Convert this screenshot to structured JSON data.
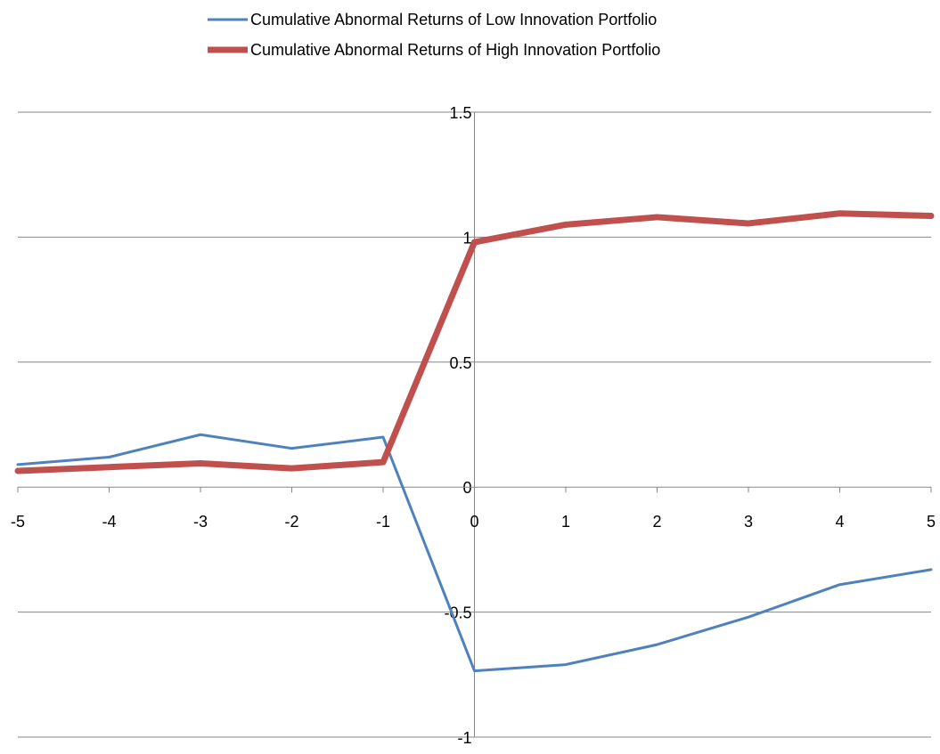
{
  "chart_data": {
    "type": "line",
    "x": [
      -5,
      -4,
      -3,
      -2,
      -1,
      0,
      1,
      2,
      3,
      4,
      5
    ],
    "x_tick_labels": [
      "-5",
      "-4",
      "-3",
      "-2",
      "-1",
      "0",
      "1",
      "2",
      "3",
      "4",
      "5"
    ],
    "y_ticks": [
      1.5,
      1,
      0.5,
      0,
      -0.5,
      -1
    ],
    "y_tick_labels": [
      "1.5",
      "1",
      "0.5",
      "0",
      "-0.5",
      "-1"
    ],
    "xlim": [
      -5,
      5
    ],
    "ylim": [
      -1,
      1.5
    ],
    "grid": true,
    "legend_position": "top",
    "series": [
      {
        "name": "Cumulative Abnormal Returns of Low Innovation Portfolio",
        "color": "#4f81bd",
        "values": [
          0.09,
          0.12,
          0.21,
          0.155,
          0.2,
          -0.735,
          -0.71,
          -0.63,
          -0.52,
          -0.39,
          -0.33
        ]
      },
      {
        "name": "Cumulative Abnormal Returns of High Innovation Portfolio",
        "color": "#c0504d",
        "values": [
          0.065,
          0.08,
          0.095,
          0.075,
          0.1,
          0.98,
          1.05,
          1.08,
          1.055,
          1.095,
          1.085
        ]
      }
    ]
  }
}
